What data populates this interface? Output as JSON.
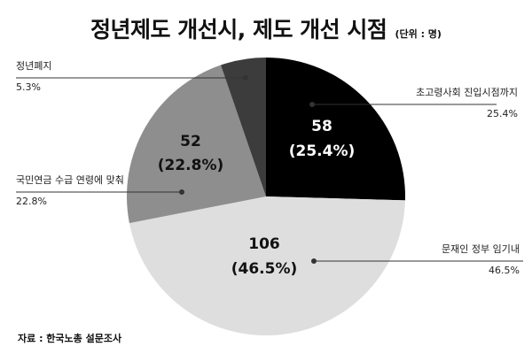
{
  "chart_data": {
    "type": "pie",
    "title": "정년제도 개선시, 제도 개선 시점",
    "unit": "(단위 : 명)",
    "source": "자료 : 한국노총 설문조사",
    "slices": [
      {
        "label": "초고령사회 진입시점까지",
        "value": 58,
        "percent": "25.4%",
        "value_label": "58",
        "pct_label": "(25.4%)",
        "color": "#000000"
      },
      {
        "label": "문재인 정부 임기내",
        "value": 106,
        "percent": "46.5%",
        "value_label": "106",
        "pct_label": "(46.5%)",
        "color": "#dedede"
      },
      {
        "label": "국민연금 수급 연령에 맞춰",
        "value": 52,
        "percent": "22.8%",
        "value_label": "52",
        "pct_label": "(22.8%)",
        "color": "#8e8e8e"
      },
      {
        "label": "정년폐지",
        "value": 12,
        "percent": "5.3%",
        "value_label": "",
        "pct_label": "",
        "color": "#3c3c3c"
      }
    ]
  }
}
